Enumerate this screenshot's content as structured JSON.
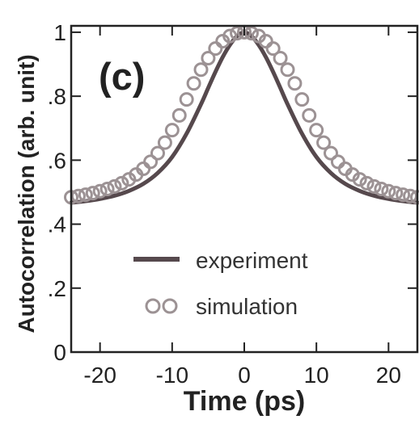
{
  "chart_data": {
    "type": "line",
    "panel_label": "(c)",
    "xlabel": "Time (ps)",
    "ylabel": "Autocorrelation (arb. unit)",
    "xlim": [
      -24,
      24
    ],
    "ylim": [
      0,
      1.02
    ],
    "x_ticks": [
      -20,
      -10,
      0,
      10,
      20
    ],
    "x_tick_labels": [
      "-20",
      "-10",
      "0",
      "10",
      "20"
    ],
    "y_ticks": [
      0,
      0.2,
      0.4,
      0.6,
      0.8,
      1.0
    ],
    "y_tick_labels": [
      "0",
      ".2",
      ".4",
      ".6",
      ".8",
      "1"
    ],
    "grid": false,
    "legend_position": "lower-center",
    "colors": {
      "experiment": "#56494d",
      "simulation": "#9c9294",
      "axes": "#222222"
    },
    "series": [
      {
        "name": "experiment",
        "style": "line",
        "x": [
          -24,
          -22,
          -20,
          -18,
          -16,
          -14,
          -12,
          -10,
          -8,
          -6,
          -5,
          -4,
          -3,
          -2,
          -1,
          0,
          1,
          2,
          3,
          4,
          5,
          6,
          8,
          10,
          12,
          14,
          16,
          18,
          20,
          22,
          24
        ],
        "y": [
          0.467,
          0.472,
          0.479,
          0.489,
          0.504,
          0.526,
          0.56,
          0.61,
          0.683,
          0.775,
          0.826,
          0.876,
          0.922,
          0.96,
          0.988,
          1.0,
          0.988,
          0.96,
          0.922,
          0.876,
          0.826,
          0.775,
          0.683,
          0.61,
          0.56,
          0.526,
          0.504,
          0.489,
          0.479,
          0.472,
          0.467
        ]
      },
      {
        "name": "simulation",
        "style": "markers",
        "x": [
          -24,
          -23,
          -22,
          -21,
          -20,
          -19,
          -18,
          -17,
          -16,
          -15,
          -14,
          -13,
          -12,
          -11,
          -10,
          -9,
          -8,
          -7,
          -6,
          -5,
          -4,
          -3,
          -2,
          -1,
          0,
          1,
          2,
          3,
          4,
          5,
          6,
          7,
          8,
          9,
          10,
          11,
          12,
          13,
          14,
          15,
          16,
          17,
          18,
          19,
          20,
          21,
          22,
          23,
          24
        ],
        "y": [
          0.484,
          0.488,
          0.492,
          0.497,
          0.503,
          0.51,
          0.518,
          0.528,
          0.54,
          0.555,
          0.573,
          0.595,
          0.622,
          0.655,
          0.694,
          0.74,
          0.79,
          0.84,
          0.883,
          0.919,
          0.949,
          0.972,
          0.988,
          0.997,
          1.0,
          0.997,
          0.988,
          0.972,
          0.949,
          0.919,
          0.883,
          0.84,
          0.79,
          0.74,
          0.694,
          0.655,
          0.622,
          0.595,
          0.573,
          0.555,
          0.54,
          0.528,
          0.518,
          0.51,
          0.503,
          0.497,
          0.492,
          0.488,
          0.484
        ]
      }
    ]
  }
}
